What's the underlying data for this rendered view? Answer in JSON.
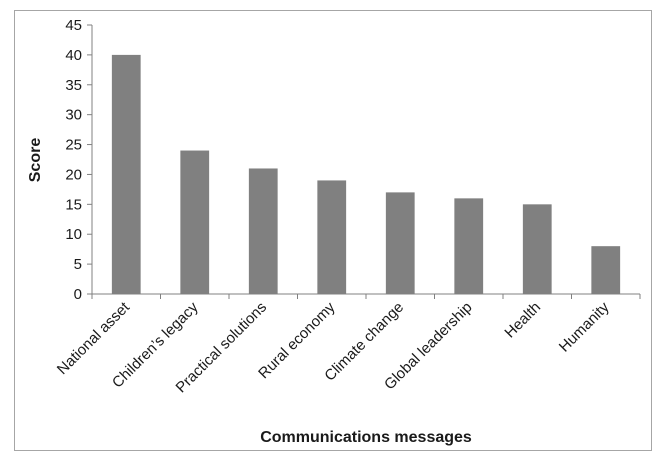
{
  "chart_data": {
    "type": "bar",
    "title": "",
    "xlabel": "Communications messages",
    "ylabel": "Score",
    "categories": [
      "National asset",
      "Children’s legacy",
      "Practical solutions",
      "Rural economy",
      "Climate change",
      "Global leadership",
      "Health",
      "Humanity"
    ],
    "values": [
      40,
      24,
      21,
      19,
      17,
      16,
      15,
      8
    ],
    "ylim": [
      0,
      45
    ],
    "yticks": [
      0,
      5,
      10,
      15,
      20,
      25,
      30,
      35,
      40,
      45
    ],
    "grid": false,
    "legend": "none",
    "bar_color": "#808080",
    "border_color": "#a6a6a6"
  }
}
